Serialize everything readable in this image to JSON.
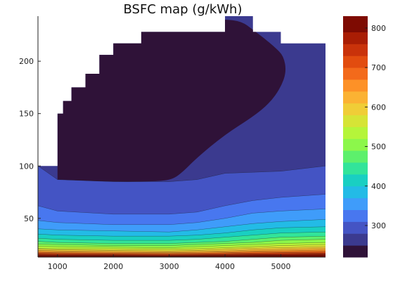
{
  "chart_data": {
    "type": "contourf",
    "title": "BSFC map (g/kWh)",
    "xlabel": "",
    "ylabel": "",
    "xlim": [
      650,
      5800
    ],
    "ylim": [
      13,
      243
    ],
    "x_ticks": [
      1000,
      2000,
      3000,
      4000,
      5000
    ],
    "y_ticks": [
      50,
      100,
      150,
      200
    ],
    "colorbar": {
      "range": [
        220,
        830
      ],
      "ticks": [
        300,
        400,
        500,
        600,
        700,
        800
      ],
      "levels": [
        220,
        250,
        280,
        310,
        340,
        370,
        400,
        430,
        460,
        490,
        520,
        550,
        580,
        610,
        640,
        670,
        700,
        730,
        760,
        790,
        830
      ],
      "colormap": "turbo",
      "colors": [
        "#2f1238",
        "#3b3a8f",
        "#4454c4",
        "#4877ef",
        "#3f9cfa",
        "#23bbe6",
        "#19cfc2",
        "#32e49a",
        "#5df06c",
        "#8cf74b",
        "#b5f53a",
        "#d6e436",
        "#f0cd37",
        "#fbb233",
        "#fd9127",
        "#f36a1b",
        "#e24c0f",
        "#c9320a",
        "#a91d04",
        "#7e0b02"
      ]
    },
    "max_torque_curve": [
      {
        "rpm": 650,
        "torque": 100
      },
      {
        "rpm": 1000,
        "torque": 150
      },
      {
        "rpm": 1100,
        "torque": 162
      },
      {
        "rpm": 1250,
        "torque": 175
      },
      {
        "rpm": 1500,
        "torque": 188
      },
      {
        "rpm": 1750,
        "torque": 206
      },
      {
        "rpm": 2000,
        "torque": 217
      },
      {
        "rpm": 2500,
        "torque": 228
      },
      {
        "rpm": 4000,
        "torque": 243
      },
      {
        "rpm": 4500,
        "torque": 228
      },
      {
        "rpm": 5000,
        "torque": 217
      },
      {
        "rpm": 5800,
        "torque": 217
      }
    ],
    "contours": [
      {
        "level": 250,
        "points": [
          [
            650,
            100
          ],
          [
            1000,
            87
          ],
          [
            2000,
            85
          ],
          [
            3000,
            85
          ],
          [
            3500,
            87
          ],
          [
            4000,
            93
          ],
          [
            4500,
            94
          ],
          [
            5000,
            95
          ],
          [
            5800,
            100
          ]
        ]
      },
      {
        "level": 280,
        "points": [
          [
            650,
            62
          ],
          [
            1000,
            57
          ],
          [
            2000,
            54
          ],
          [
            3000,
            54
          ],
          [
            3500,
            56
          ],
          [
            4000,
            62
          ],
          [
            4500,
            67
          ],
          [
            5000,
            70
          ],
          [
            5800,
            73
          ]
        ]
      },
      {
        "level": 310,
        "points": [
          [
            650,
            48
          ],
          [
            1000,
            46
          ],
          [
            2000,
            44
          ],
          [
            3000,
            44
          ],
          [
            3500,
            46
          ],
          [
            4000,
            50
          ],
          [
            4500,
            55
          ],
          [
            5000,
            57
          ],
          [
            5800,
            59
          ]
        ]
      },
      {
        "level": 340,
        "points": [
          [
            650,
            40
          ],
          [
            1000,
            39
          ],
          [
            2000,
            38
          ],
          [
            3000,
            37
          ],
          [
            3500,
            39
          ],
          [
            4000,
            42
          ],
          [
            4500,
            45
          ],
          [
            5000,
            47
          ],
          [
            5800,
            49
          ]
        ]
      },
      {
        "level": 370,
        "points": [
          [
            650,
            35
          ],
          [
            1000,
            34
          ],
          [
            2000,
            33
          ],
          [
            3000,
            33
          ],
          [
            3500,
            34
          ],
          [
            4000,
            36
          ],
          [
            4500,
            39
          ],
          [
            5000,
            41
          ],
          [
            5800,
            42
          ]
        ]
      },
      {
        "level": 400,
        "points": [
          [
            650,
            31
          ],
          [
            1000,
            30
          ],
          [
            2000,
            29
          ],
          [
            3000,
            29
          ],
          [
            3500,
            30
          ],
          [
            4000,
            32
          ],
          [
            4500,
            34
          ],
          [
            5000,
            36
          ],
          [
            5800,
            37
          ]
        ]
      },
      {
        "level": 430,
        "points": [
          [
            650,
            28
          ],
          [
            1000,
            27
          ],
          [
            2000,
            26
          ],
          [
            3000,
            26
          ],
          [
            3500,
            27
          ],
          [
            4000,
            28
          ],
          [
            4500,
            30
          ],
          [
            5000,
            32
          ],
          [
            5800,
            33
          ]
        ]
      },
      {
        "level": 460,
        "points": [
          [
            650,
            25.5
          ],
          [
            1000,
            25
          ],
          [
            2000,
            24
          ],
          [
            3000,
            24
          ],
          [
            3500,
            25
          ],
          [
            4000,
            26
          ],
          [
            4500,
            27
          ],
          [
            5000,
            29
          ],
          [
            5800,
            30
          ]
        ]
      },
      {
        "level": 490,
        "points": [
          [
            650,
            23.5
          ],
          [
            1000,
            23
          ],
          [
            2000,
            22.5
          ],
          [
            3000,
            22
          ],
          [
            3500,
            23
          ],
          [
            4000,
            24
          ],
          [
            4500,
            25
          ],
          [
            5000,
            26
          ],
          [
            5800,
            27
          ]
        ]
      },
      {
        "level": 520,
        "points": [
          [
            650,
            21.5
          ],
          [
            1000,
            21
          ],
          [
            2000,
            21
          ],
          [
            3000,
            20.5
          ],
          [
            3500,
            21
          ],
          [
            4000,
            22
          ],
          [
            4500,
            23
          ],
          [
            5000,
            24
          ],
          [
            5800,
            25
          ]
        ]
      },
      {
        "level": 550,
        "points": [
          [
            650,
            20.5
          ],
          [
            1000,
            20
          ],
          [
            2000,
            19.5
          ],
          [
            3000,
            19
          ],
          [
            3500,
            19.5
          ],
          [
            4000,
            20.5
          ],
          [
            4500,
            21.5
          ],
          [
            5000,
            22
          ],
          [
            5800,
            23
          ]
        ]
      },
      {
        "level": 580,
        "points": [
          [
            650,
            19.5
          ],
          [
            1000,
            19
          ],
          [
            2000,
            18.5
          ],
          [
            3000,
            18
          ],
          [
            3500,
            18.5
          ],
          [
            4000,
            19
          ],
          [
            4500,
            20
          ],
          [
            5000,
            20.5
          ],
          [
            5800,
            21.5
          ]
        ]
      },
      {
        "level": 610,
        "points": [
          [
            650,
            18.5
          ],
          [
            1000,
            18
          ],
          [
            2000,
            17.5
          ],
          [
            3000,
            17.2
          ],
          [
            3500,
            17.5
          ],
          [
            4000,
            18
          ],
          [
            4500,
            18.8
          ],
          [
            5000,
            19.2
          ],
          [
            5800,
            20
          ]
        ]
      },
      {
        "level": 640,
        "points": [
          [
            650,
            17.6
          ],
          [
            1000,
            17.2
          ],
          [
            2000,
            16.8
          ],
          [
            3000,
            16.5
          ],
          [
            3500,
            16.7
          ],
          [
            4000,
            17.2
          ],
          [
            4500,
            17.8
          ],
          [
            5000,
            18.1
          ],
          [
            5800,
            18.8
          ]
        ]
      },
      {
        "level": 670,
        "points": [
          [
            650,
            16.8
          ],
          [
            1000,
            16.5
          ],
          [
            2000,
            16.1
          ],
          [
            3000,
            15.8
          ],
          [
            3500,
            16
          ],
          [
            4000,
            16.4
          ],
          [
            4500,
            16.9
          ],
          [
            5000,
            17.2
          ],
          [
            5800,
            17.7
          ]
        ]
      },
      {
        "level": 700,
        "points": [
          [
            650,
            16
          ],
          [
            1000,
            15.8
          ],
          [
            2000,
            15.5
          ],
          [
            3000,
            15.2
          ],
          [
            3500,
            15.4
          ],
          [
            4000,
            15.7
          ],
          [
            4500,
            16.1
          ],
          [
            5000,
            16.4
          ],
          [
            5800,
            16.8
          ]
        ]
      },
      {
        "level": 730,
        "points": [
          [
            650,
            15.3
          ],
          [
            1000,
            15.1
          ],
          [
            2000,
            14.9
          ],
          [
            3000,
            14.7
          ],
          [
            3500,
            14.8
          ],
          [
            4000,
            15.1
          ],
          [
            4500,
            15.4
          ],
          [
            5000,
            15.6
          ],
          [
            5800,
            16
          ]
        ]
      },
      {
        "level": 760,
        "points": [
          [
            650,
            14.6
          ],
          [
            1000,
            14.5
          ],
          [
            2000,
            14.3
          ],
          [
            3000,
            14.2
          ],
          [
            3500,
            14.3
          ],
          [
            4000,
            14.5
          ],
          [
            4500,
            14.7
          ],
          [
            5000,
            14.9
          ],
          [
            5800,
            15.2
          ]
        ]
      },
      {
        "level": 790,
        "points": [
          [
            650,
            13.9
          ],
          [
            1000,
            13.8
          ],
          [
            2000,
            13.7
          ],
          [
            3000,
            13.6
          ],
          [
            3500,
            13.7
          ],
          [
            4000,
            13.8
          ],
          [
            4500,
            14
          ],
          [
            5000,
            14.1
          ],
          [
            5800,
            14.4
          ]
        ]
      }
    ],
    "optimal_region": {
      "level": 250,
      "points": [
        [
          1000,
          87
        ],
        [
          1500,
          86
        ],
        [
          2000,
          85
        ],
        [
          2500,
          85
        ],
        [
          3000,
          86
        ],
        [
          3200,
          92
        ],
        [
          3500,
          108
        ],
        [
          4000,
          130
        ],
        [
          4500,
          147
        ],
        [
          4800,
          160
        ],
        [
          5000,
          175
        ],
        [
          5100,
          190
        ],
        [
          5050,
          205
        ],
        [
          4900,
          213
        ],
        [
          4700,
          222
        ],
        [
          4500,
          230
        ],
        [
          4300,
          238
        ],
        [
          4000,
          240
        ],
        [
          3500,
          240
        ],
        [
          3000,
          240
        ],
        [
          2500,
          234
        ],
        [
          2000,
          224
        ],
        [
          1750,
          210
        ],
        [
          1500,
          194
        ],
        [
          1250,
          180
        ],
        [
          1100,
          166
        ],
        [
          1000,
          155
        ]
      ]
    }
  }
}
